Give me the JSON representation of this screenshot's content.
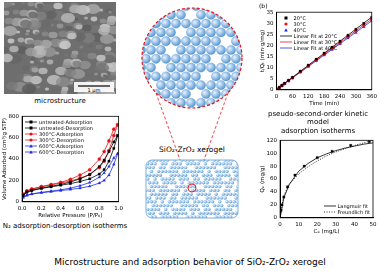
{
  "chart_data": [
    {
      "type": "scatter",
      "title": "(b)",
      "x_label": "Time (min)",
      "y_label": "t/Qₜ (min·g/mg)",
      "xlim": [
        0,
        360
      ],
      "xticks": [
        0,
        60,
        120,
        180,
        240,
        300,
        360
      ],
      "ylim": [
        0,
        35
      ],
      "yticks": [
        0,
        5,
        10,
        15,
        20,
        25,
        30,
        35
      ],
      "grid": false,
      "legend": "upper left",
      "series": [
        {
          "name": "20°C",
          "type": "scatter",
          "color": "#000000",
          "marker": "square",
          "x": [
            10,
            20,
            30,
            45,
            60,
            90,
            120,
            150,
            180,
            210,
            240,
            270,
            300,
            330,
            360
          ],
          "values": [
            1.1,
            2.0,
            2.9,
            4.3,
            5.6,
            8.4,
            11.1,
            13.8,
            16.5,
            19.2,
            21.9,
            24.6,
            27.3,
            30.0,
            32.7
          ]
        },
        {
          "name": "30°C",
          "type": "scatter",
          "color": "#e8141c",
          "marker": "circle",
          "x": [
            10,
            20,
            30,
            45,
            60,
            90,
            120,
            150,
            180,
            210,
            240,
            270,
            300,
            330,
            360
          ],
          "values": [
            1.0,
            1.9,
            2.8,
            4.1,
            5.4,
            8.1,
            10.7,
            13.4,
            16.0,
            18.6,
            21.2,
            23.9,
            26.5,
            29.1,
            31.8
          ]
        },
        {
          "name": "40°C",
          "type": "scatter",
          "color": "#1f2ee0",
          "marker": "triangle",
          "x": [
            10,
            20,
            30,
            45,
            60,
            90,
            120,
            150,
            180,
            210,
            240,
            270,
            300,
            330,
            360
          ],
          "values": [
            1.0,
            1.8,
            2.7,
            4.0,
            5.3,
            7.9,
            10.5,
            13.0,
            15.6,
            18.1,
            20.7,
            23.3,
            25.8,
            28.4,
            31.0
          ]
        },
        {
          "name": "Linear Fit at 20°C",
          "type": "line",
          "color": "#000000",
          "marker": "none",
          "line_style": "solid",
          "x": [
            0,
            360
          ],
          "values": [
            0.2,
            32.8
          ]
        },
        {
          "name": "Linear Fit at 30°C",
          "type": "line",
          "color": "#e8141c",
          "marker": "none",
          "line_style": "solid",
          "x": [
            0,
            360
          ],
          "values": [
            0.2,
            31.9
          ]
        },
        {
          "name": "Linear Fit at 40°C",
          "type": "line",
          "color": "#1f2ee0",
          "marker": "none",
          "line_style": "solid",
          "x": [
            0,
            360
          ],
          "values": [
            0.2,
            31.1
          ]
        }
      ]
    },
    {
      "type": "line",
      "x_label": "Relative Pressure (P/P₀)",
      "y_label": "Volume Adsorbed (cm³/g STP)",
      "xlim": [
        0,
        1
      ],
      "xticks": [
        {
          "value": 0,
          "label": "0.0"
        },
        0.2,
        0.4,
        0.6,
        0.8,
        {
          "value": 1,
          "label": "1.0"
        }
      ],
      "ylim": [
        0,
        800
      ],
      "yticks": [
        0,
        200,
        400,
        600,
        800
      ],
      "grid": false,
      "legend": "upper left",
      "series": [
        {
          "name": "untreated-Adsorption",
          "type": "line",
          "color": "#000000",
          "marker": "square",
          "line_style": "solid",
          "x": [
            0.01,
            0.05,
            0.1,
            0.2,
            0.3,
            0.4,
            0.5,
            0.6,
            0.7,
            0.8,
            0.85,
            0.9,
            0.95,
            0.99
          ],
          "values": [
            60,
            90,
            105,
            125,
            140,
            155,
            170,
            190,
            215,
            260,
            300,
            380,
            500,
            620
          ]
        },
        {
          "name": "untreated-Desorption",
          "type": "line",
          "color": "#000000",
          "marker": "square",
          "line_style": "solid",
          "x": [
            0.01,
            0.05,
            0.1,
            0.2,
            0.3,
            0.4,
            0.5,
            0.6,
            0.7,
            0.8,
            0.85,
            0.9,
            0.95,
            0.99
          ],
          "values": [
            60,
            92,
            108,
            128,
            145,
            162,
            185,
            215,
            255,
            330,
            390,
            470,
            560,
            620
          ]
        },
        {
          "name": "300°C-Adsorption",
          "type": "line",
          "color": "#e8141c",
          "marker": "circle",
          "line_style": "solid",
          "x": [
            0.01,
            0.05,
            0.1,
            0.2,
            0.3,
            0.4,
            0.5,
            0.6,
            0.7,
            0.8,
            0.85,
            0.9,
            0.95,
            0.99
          ],
          "values": [
            70,
            100,
            118,
            140,
            158,
            175,
            195,
            220,
            255,
            320,
            380,
            480,
            620,
            720
          ]
        },
        {
          "name": "300°C-Desorption",
          "type": "line",
          "color": "#e8141c",
          "marker": "circle",
          "line_style": "solid",
          "x": [
            0.01,
            0.05,
            0.1,
            0.2,
            0.3,
            0.4,
            0.5,
            0.6,
            0.7,
            0.8,
            0.85,
            0.9,
            0.95,
            0.99
          ],
          "values": [
            70,
            102,
            120,
            143,
            162,
            182,
            210,
            250,
            300,
            400,
            470,
            570,
            680,
            720
          ]
        },
        {
          "name": "600°C-Adsorption",
          "type": "line",
          "color": "#1f2ee0",
          "marker": "triangle",
          "line_style": "solid",
          "x": [
            0.01,
            0.05,
            0.1,
            0.2,
            0.3,
            0.4,
            0.5,
            0.6,
            0.7,
            0.8,
            0.85,
            0.9,
            0.95,
            0.99
          ],
          "values": [
            40,
            60,
            72,
            85,
            95,
            105,
            115,
            128,
            145,
            175,
            200,
            250,
            350,
            450
          ]
        },
        {
          "name": "600°C-Desorption",
          "type": "line",
          "color": "#1f2ee0",
          "marker": "triangle",
          "line_style": "solid",
          "x": [
            0.01,
            0.05,
            0.1,
            0.2,
            0.3,
            0.4,
            0.5,
            0.6,
            0.7,
            0.8,
            0.85,
            0.9,
            0.95,
            0.99
          ],
          "values": [
            40,
            62,
            74,
            88,
            100,
            112,
            128,
            150,
            180,
            230,
            270,
            330,
            410,
            450
          ]
        }
      ]
    },
    {
      "type": "scatter",
      "x_label": "Cₑ (mg/L)",
      "y_label": "Qₑ (mg/g)",
      "xlim": [
        0,
        50
      ],
      "xticks": [
        0,
        10,
        20,
        30,
        40,
        50
      ],
      "ylim": [
        0,
        120
      ],
      "yticks": [
        0,
        20,
        40,
        60,
        80,
        100,
        120
      ],
      "grid": false,
      "legend": "lower right",
      "series": [
        {
          "type": "scatter",
          "color": "#000000",
          "marker": "square",
          "x": [
            0.5,
            1,
            2,
            4,
            8,
            13,
            20,
            28,
            38,
            48
          ],
          "values": [
            12,
            20,
            32,
            48,
            66,
            80,
            93,
            103,
            112,
            118
          ]
        },
        {
          "name": "Langmuir fit",
          "type": "line",
          "color": "#000000",
          "marker": "none",
          "line_style": "solid",
          "x": [
            0,
            2,
            5,
            10,
            15,
            20,
            25,
            30,
            35,
            40,
            45,
            50
          ],
          "values": [
            0,
            31,
            52,
            72,
            84,
            93,
            99,
            104,
            108,
            111,
            114,
            116
          ]
        },
        {
          "name": "Freundlich fit",
          "type": "line",
          "color": "#000000",
          "marker": "none",
          "line_style": "dotted",
          "x": [
            0,
            2,
            5,
            10,
            15,
            20,
            25,
            30,
            35,
            40,
            45,
            50
          ],
          "values": [
            0,
            35,
            52,
            68,
            79,
            88,
            96,
            102,
            107,
            112,
            116,
            120
          ]
        }
      ]
    }
  ],
  "figure": {
    "title": "Microstructure and adsorption behavior of SiO₂-ZrO₂ xerogel",
    "micrograph": {
      "caption": "microstructure",
      "scale_bar": "1 μm"
    },
    "kinetics_caption": "pseudo-second-order kinetic model",
    "isotherm_caption": "N₂ adsorption-desorption isotherms",
    "adsorption_caption": "adsorption isotherms",
    "xerogel_label": "SiO₂-ZrO₂ xerogel"
  }
}
